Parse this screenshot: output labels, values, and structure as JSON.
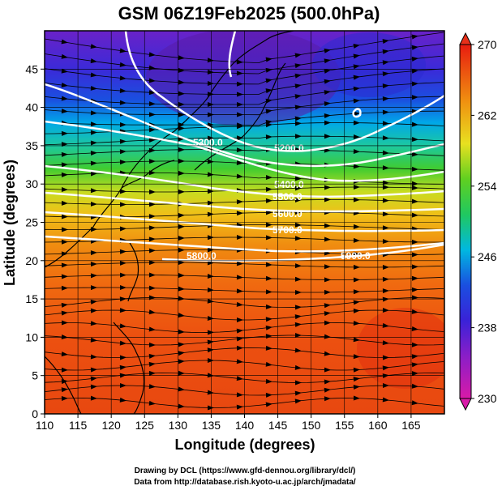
{
  "title": "GSM 06Z19Feb2025 (500.0hPa)",
  "chart_data": {
    "type": "heatmap",
    "title": "GSM 06Z19Feb2025 (500.0hPa)",
    "xlabel": "Longitude (degrees)",
    "ylabel": "Latitude  (degrees)",
    "xlim": [
      110,
      170
    ],
    "ylim": [
      0,
      50
    ],
    "x_ticks": [
      110,
      115,
      120,
      125,
      130,
      135,
      140,
      145,
      150,
      155,
      160,
      165
    ],
    "y_ticks": [
      0,
      5,
      10,
      15,
      20,
      25,
      30,
      35,
      40,
      45
    ],
    "colorbar": {
      "min": 230,
      "max": 270,
      "ticks": [
        230,
        238,
        246,
        254,
        262,
        270
      ],
      "colors": [
        "#d81aa8",
        "#7a1fc4",
        "#1a3fe0",
        "#00b8e0",
        "#20c840",
        "#e8e020",
        "#f08c10",
        "#e81c10"
      ]
    },
    "contour_labels": [
      "5300.0",
      "5200.0",
      "5400.0",
      "5500.0",
      "5600.0",
      "5700.0",
      "5800.0",
      "5900.0"
    ]
  },
  "credits": {
    "line1": "Drawing by DCL (https://www.gfd-dennou.org/library/dcl/)",
    "line2": "Data from http://database.rish.kyoto-u.ac.jp/arch/jmadata/"
  }
}
